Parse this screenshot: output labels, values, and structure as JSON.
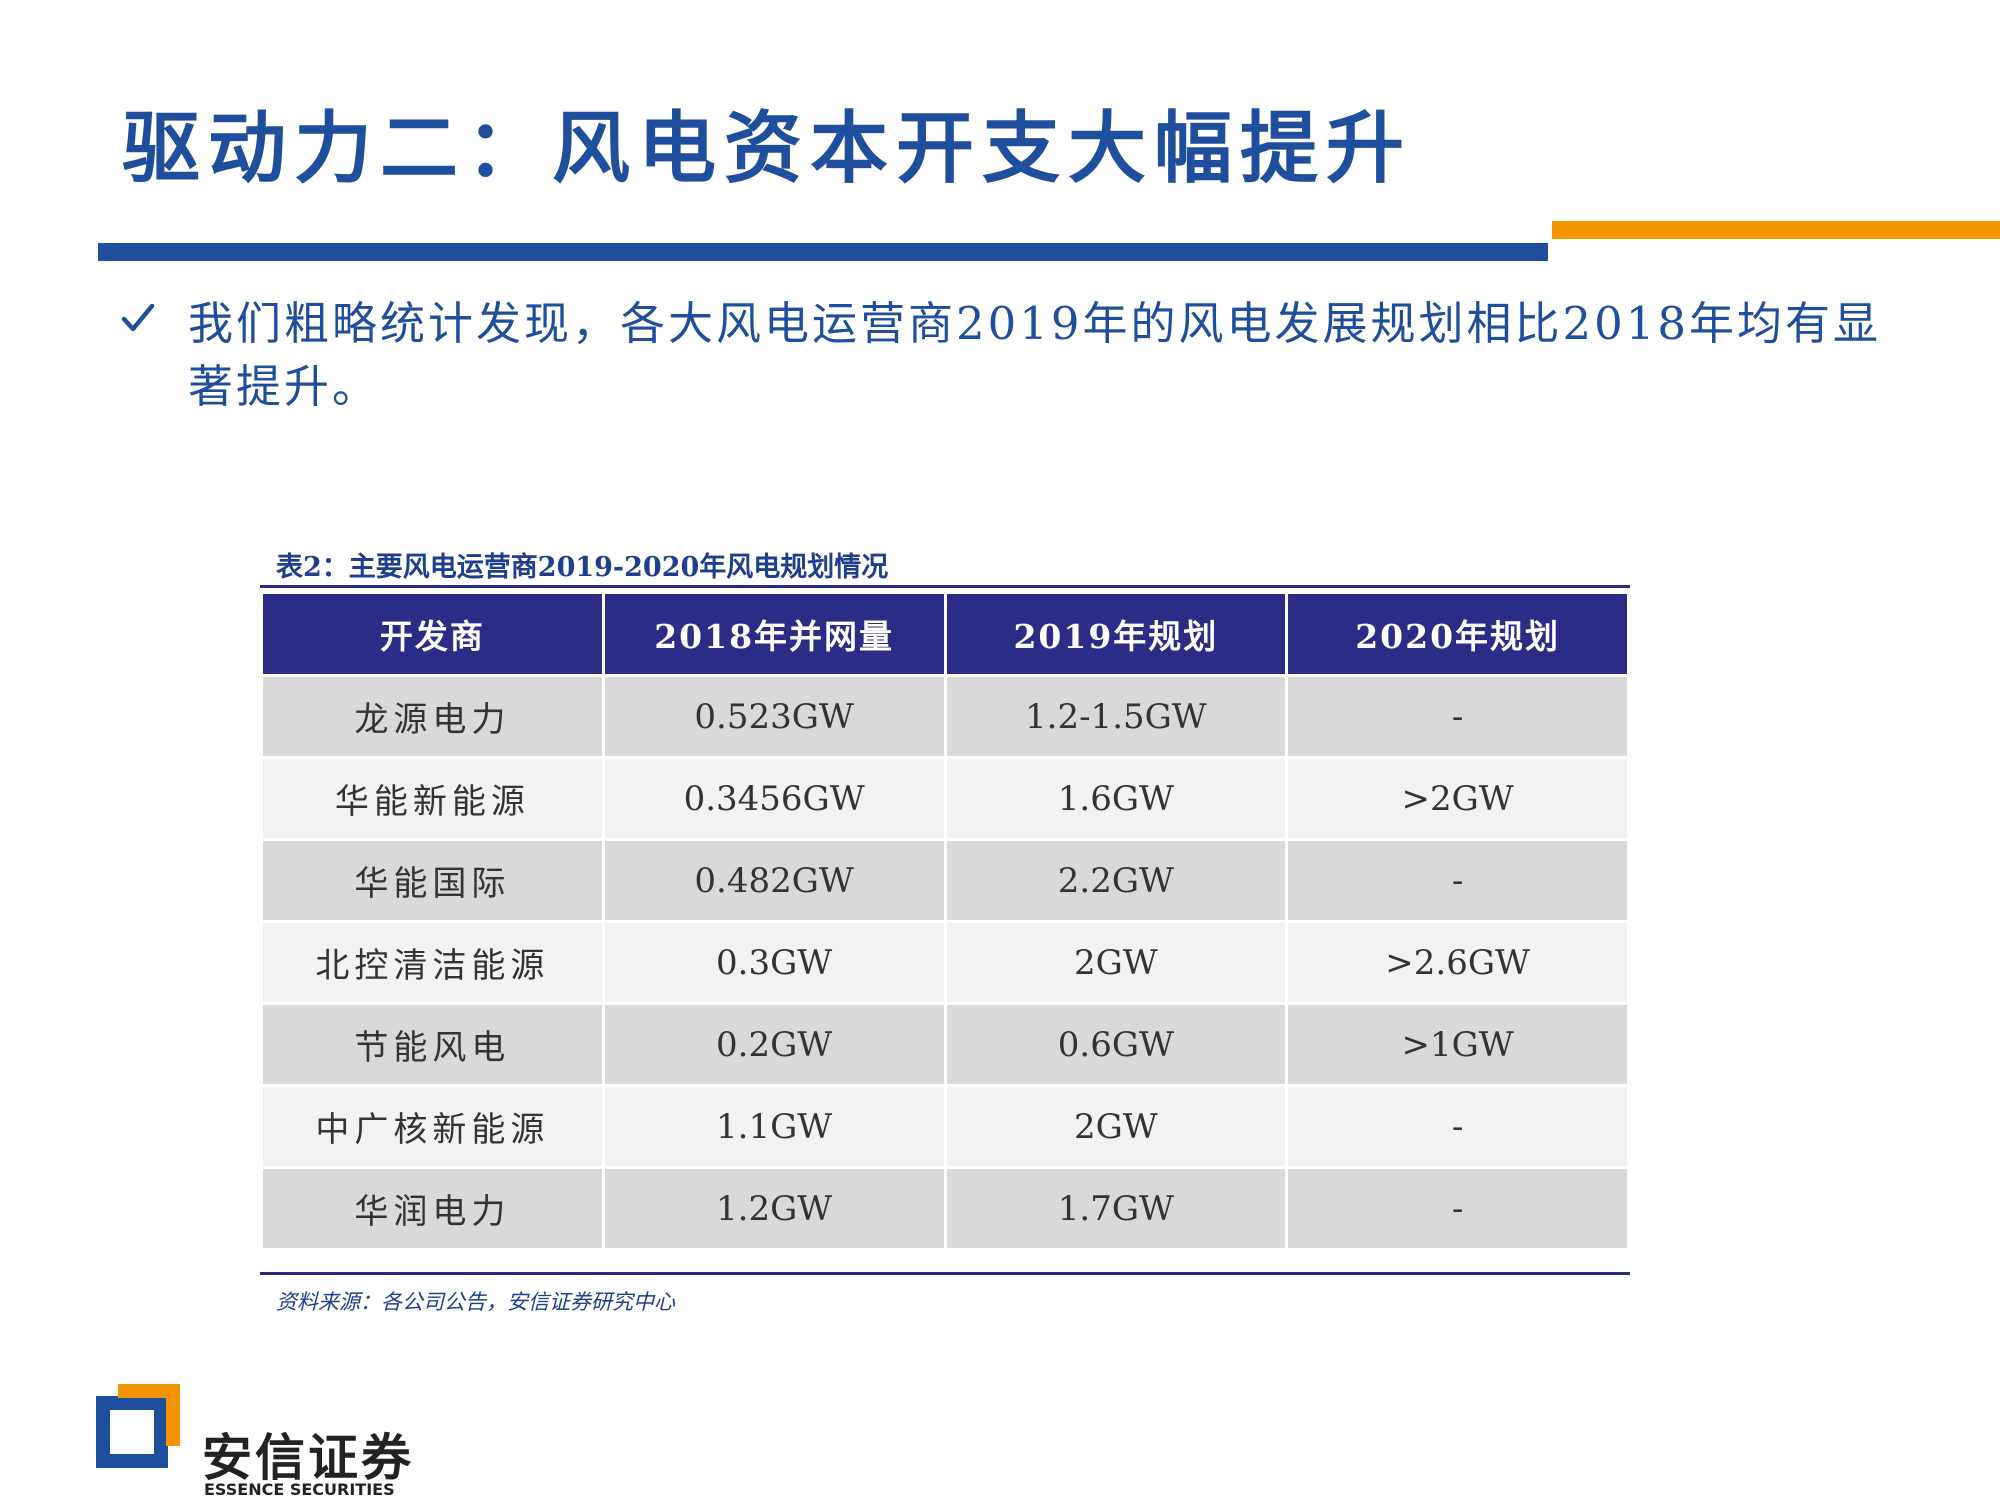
{
  "title": "驱动力二：风电资本开支大幅提升",
  "bullet": {
    "icon": "check-icon",
    "text": "我们粗略统计发现，各大风电运营商2019年的风电发展规划相比2018年均有显著提升。"
  },
  "table": {
    "caption": "表2：主要风电运营商2019-2020年风电规划情况",
    "headers": [
      "开发商",
      "2018年并网量",
      "2019年规划",
      "2020年规划"
    ],
    "rows": [
      [
        "龙源电力",
        "0.523GW",
        "1.2-1.5GW",
        "-"
      ],
      [
        "华能新能源",
        "0.3456GW",
        "1.6GW",
        ">2GW"
      ],
      [
        "华能国际",
        "0.482GW",
        "2.2GW",
        "-"
      ],
      [
        "北控清洁能源",
        "0.3GW",
        "2GW",
        ">2.6GW"
      ],
      [
        "节能风电",
        "0.2GW",
        "0.6GW",
        ">1GW"
      ],
      [
        "中广核新能源",
        "1.1GW",
        "2GW",
        "-"
      ],
      [
        "华润电力",
        "1.2GW",
        "1.7GW",
        "-"
      ]
    ],
    "source": "资料来源：各公司公告，安信证券研究中心"
  },
  "logo": {
    "icon": "essence-securities-logo",
    "name_cn": "安信证券",
    "name_en": "ESSENCE SECURITIES"
  },
  "colors": {
    "title_blue": "#1f4e9c",
    "accent_orange": "#f39400",
    "table_header": "#2c2c86",
    "row_dark": "#d9d9d9",
    "row_light": "#f2f2f2"
  }
}
